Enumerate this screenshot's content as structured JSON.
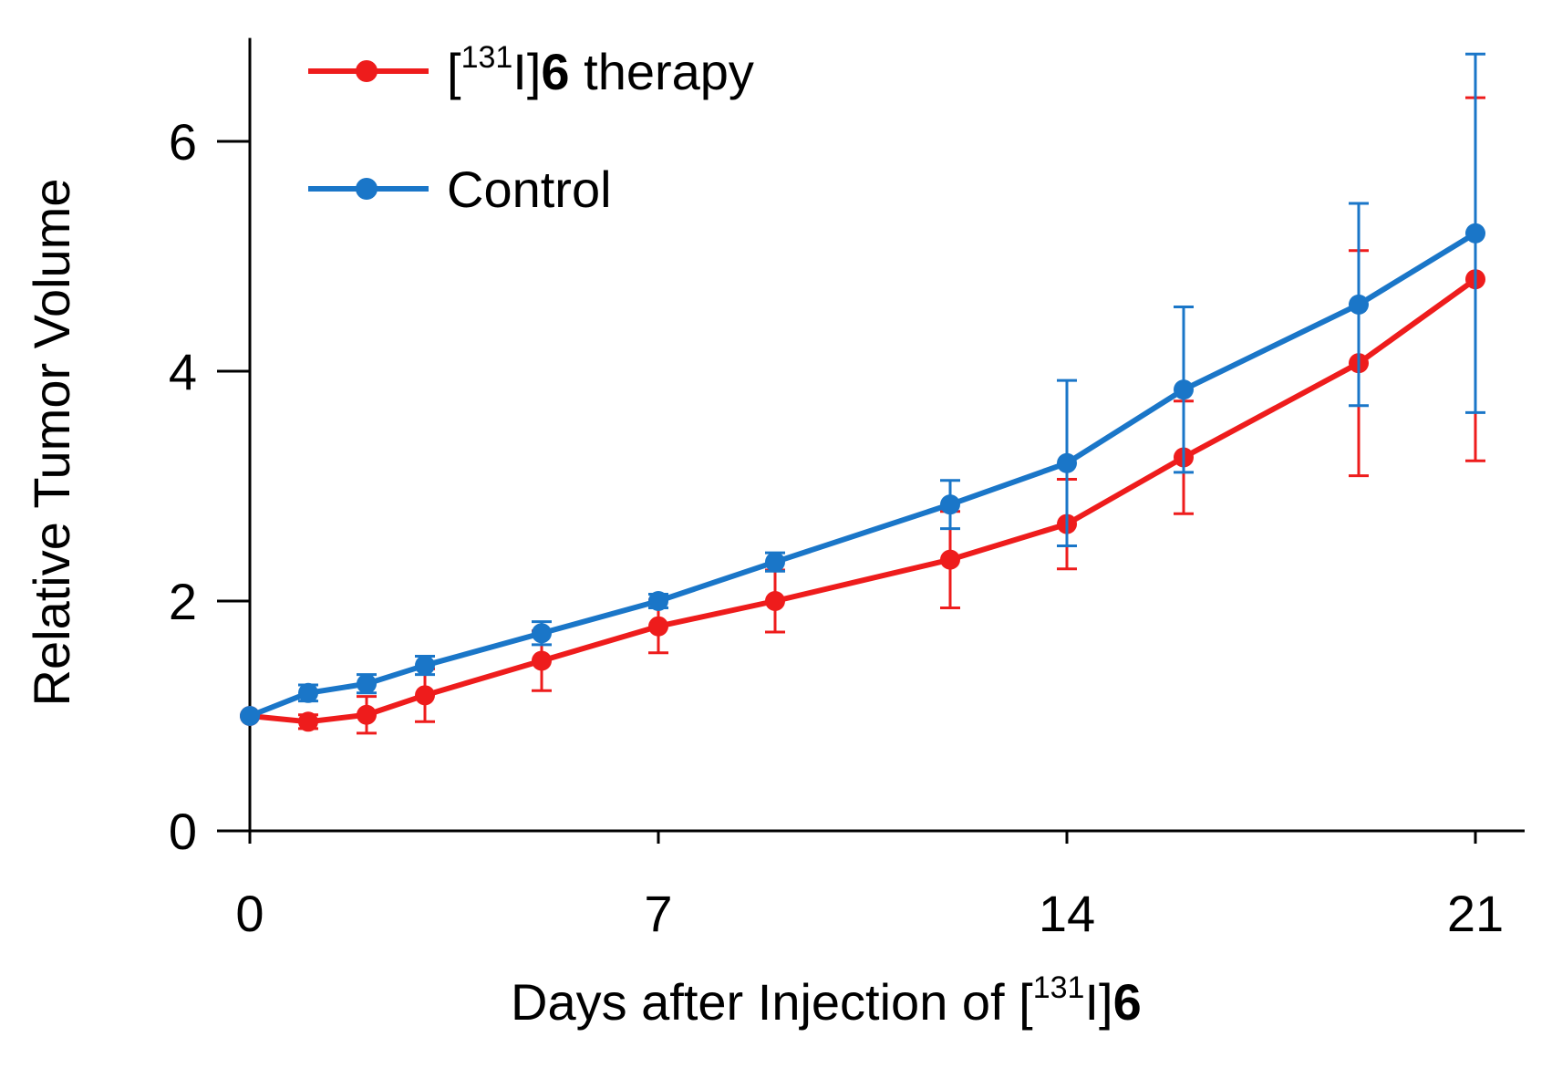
{
  "chart_data": {
    "type": "line",
    "title": "",
    "xlabel": {
      "prefix": "Days after Injection of [",
      "superscript": "131",
      "element": "I]",
      "compound": "6"
    },
    "ylabel": "Relative Tumor Volume",
    "xlim": [
      0,
      21
    ],
    "ylim": [
      0,
      6.9
    ],
    "xticks": [
      0,
      7,
      14,
      21
    ],
    "xtick_labels": [
      "0",
      "7",
      "14",
      "21"
    ],
    "yticks": [
      0,
      2,
      4,
      6
    ],
    "ytick_labels": [
      "0",
      "2",
      "4",
      "6"
    ],
    "grid": false,
    "legend_position": "top-left",
    "series": [
      {
        "name": "[131I]6 therapy",
        "legend": {
          "open": "[",
          "superscript": "131",
          "element": "I]",
          "compound": "6",
          "suffix": " therapy"
        },
        "color": "#ee1c1c",
        "x": [
          0,
          1,
          2,
          3,
          5,
          7,
          9,
          12,
          14,
          16,
          19,
          21
        ],
        "y": [
          1.0,
          0.95,
          1.01,
          1.18,
          1.48,
          1.78,
          2.0,
          2.36,
          2.67,
          3.25,
          4.07,
          4.8
        ],
        "err": [
          0.0,
          0.06,
          0.16,
          0.23,
          0.26,
          0.23,
          0.27,
          0.42,
          0.39,
          0.49,
          0.98,
          1.58
        ]
      },
      {
        "name": "Control",
        "legend": {
          "open": "",
          "superscript": "",
          "element": "",
          "compound": "",
          "suffix": "Control"
        },
        "color": "#1a76c8",
        "x": [
          0,
          1,
          2,
          3,
          5,
          7,
          9,
          12,
          14,
          16,
          19,
          21
        ],
        "y": [
          1.0,
          1.2,
          1.28,
          1.44,
          1.72,
          2.0,
          2.34,
          2.84,
          3.2,
          3.84,
          4.58,
          5.2
        ],
        "err": [
          0.0,
          0.07,
          0.08,
          0.08,
          0.1,
          0.06,
          0.08,
          0.21,
          0.72,
          0.72,
          0.88,
          1.56
        ]
      }
    ]
  }
}
